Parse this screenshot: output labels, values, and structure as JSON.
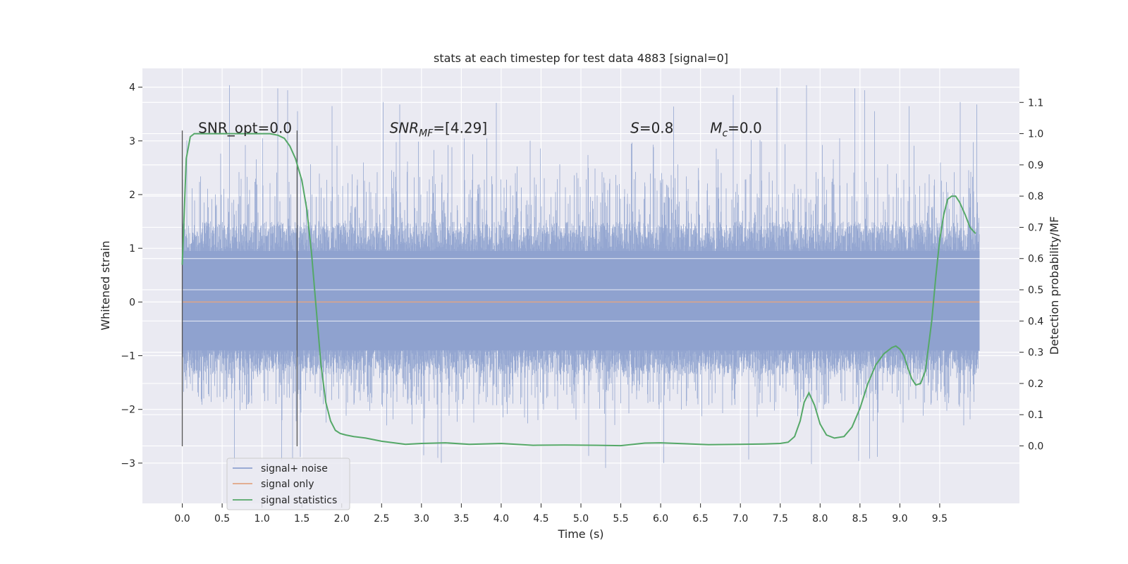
{
  "chart_data": {
    "type": "line",
    "title": "stats at each timestep for test data 4883 [signal=0]",
    "xlabel": "Time (s)",
    "ylabel": "Whitened strain",
    "y2label": "Detection probability/MF",
    "xlim": [
      -0.5,
      10.5
    ],
    "ylim": [
      -3.75,
      4.35
    ],
    "y2lim": [
      -0.184,
      1.209
    ],
    "x_ticks": [
      "0.0",
      "0.5",
      "1.0",
      "1.5",
      "2.0",
      "2.5",
      "3.0",
      "3.5",
      "4.0",
      "4.5",
      "5.0",
      "5.5",
      "6.0",
      "6.5",
      "7.0",
      "7.5",
      "8.0",
      "8.5",
      "9.0",
      "9.5"
    ],
    "y_ticks": [
      "−3",
      "−2",
      "−1",
      "0",
      "1",
      "2",
      "3",
      "4"
    ],
    "y2_ticks": [
      "0.0",
      "0.1",
      "0.2",
      "0.3",
      "0.4",
      "0.5",
      "0.6",
      "0.7",
      "0.8",
      "0.9",
      "1.0",
      "1.1"
    ],
    "grid": true,
    "legend_position": "lower-left",
    "series": [
      {
        "name": "signal+ noise",
        "color": "#8fa2cf",
        "x_range": [
          0.0,
          10.0
        ],
        "typical_band": [
          -1.35,
          1.5
        ],
        "peak_envelope": [
          -3.3,
          4.05
        ]
      },
      {
        "name": "signal only",
        "color": "#e0a585",
        "x": [
          0.0,
          10.0
        ],
        "y": [
          0.0,
          0.0
        ]
      },
      {
        "name": "signal statistics",
        "color": "#55a868",
        "x": [
          0.0,
          0.05,
          0.1,
          0.15,
          0.25,
          0.4,
          0.6,
          0.8,
          1.0,
          1.1,
          1.2,
          1.28,
          1.35,
          1.42,
          1.5,
          1.56,
          1.62,
          1.68,
          1.74,
          1.8,
          1.86,
          1.92,
          1.98,
          2.05,
          2.15,
          2.3,
          2.5,
          2.8,
          3.0,
          3.3,
          3.6,
          4.0,
          4.4,
          4.8,
          5.2,
          5.5,
          5.8,
          6.0,
          6.3,
          6.6,
          7.0,
          7.3,
          7.5,
          7.6,
          7.68,
          7.75,
          7.8,
          7.86,
          7.93,
          8.0,
          8.08,
          8.18,
          8.3,
          8.4,
          8.5,
          8.6,
          8.7,
          8.8,
          8.9,
          8.95,
          9.0,
          9.05,
          9.1,
          9.15,
          9.2,
          9.26,
          9.32,
          9.4,
          9.45,
          9.5,
          9.55,
          9.6,
          9.65,
          9.7,
          9.75,
          9.82,
          9.88,
          9.95
        ],
        "y": [
          0.58,
          0.92,
          0.99,
          1.0,
          1.0,
          1.0,
          1.0,
          1.0,
          1.0,
          1.0,
          0.995,
          0.985,
          0.96,
          0.92,
          0.85,
          0.76,
          0.62,
          0.44,
          0.26,
          0.14,
          0.08,
          0.05,
          0.04,
          0.035,
          0.03,
          0.025,
          0.015,
          0.005,
          0.008,
          0.01,
          0.005,
          0.008,
          0.002,
          0.003,
          0.002,
          0.001,
          0.009,
          0.01,
          0.007,
          0.004,
          0.005,
          0.006,
          0.008,
          0.012,
          0.03,
          0.08,
          0.14,
          0.17,
          0.13,
          0.07,
          0.035,
          0.025,
          0.03,
          0.06,
          0.12,
          0.2,
          0.26,
          0.295,
          0.315,
          0.32,
          0.31,
          0.29,
          0.25,
          0.215,
          0.195,
          0.2,
          0.24,
          0.4,
          0.54,
          0.66,
          0.74,
          0.79,
          0.8,
          0.8,
          0.78,
          0.74,
          0.7,
          0.68
        ]
      }
    ],
    "vlines": [
      0.0,
      1.44
    ],
    "annotations": [
      {
        "text": "SNR_opt=0.0",
        "math": false,
        "x": 0.2,
        "y2": 1.0
      },
      {
        "base": "SNR",
        "sub": "MF",
        "rest": "=[4.29]",
        "math": true,
        "x": 2.6,
        "y2": 1.0
      },
      {
        "base": "S",
        "sub": "",
        "rest": "=0.8",
        "math": true,
        "x": 5.62,
        "y2": 1.0
      },
      {
        "base": "M",
        "sub": "c",
        "rest": "=0.0",
        "math": true,
        "x": 6.62,
        "y2": 1.0
      }
    ]
  }
}
